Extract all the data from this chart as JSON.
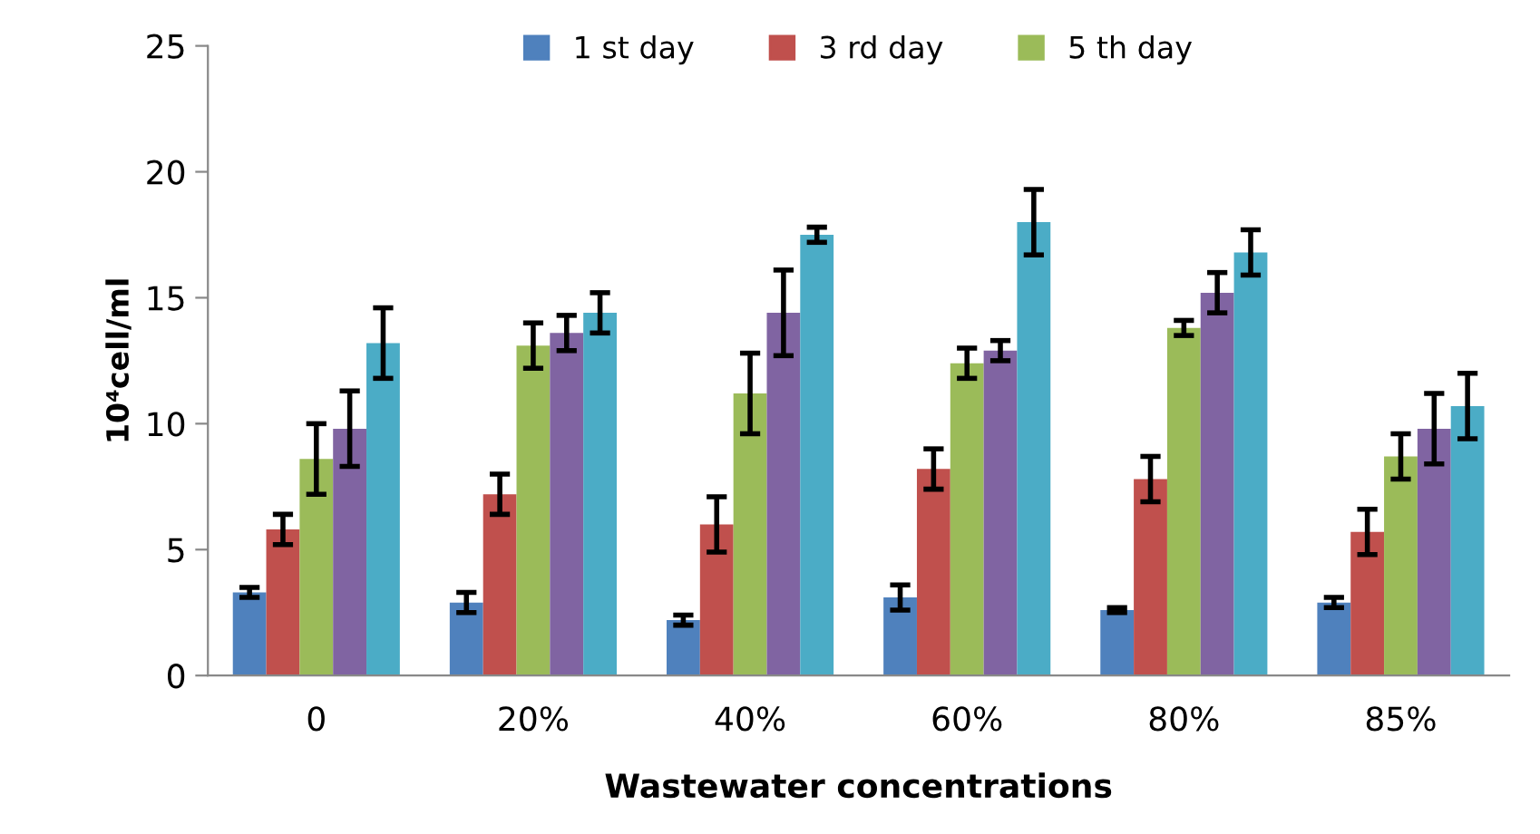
{
  "chart_data": {
    "type": "bar",
    "xlabel": "Wastewater concentrations",
    "ylabel": "10⁴cell/ml",
    "categories": [
      "0",
      "20%",
      "40%",
      "60%",
      "80%",
      "85%"
    ],
    "series": [
      {
        "name": "1 st day",
        "color": "#4f81bd",
        "values": [
          3.3,
          2.9,
          2.2,
          3.1,
          2.6,
          2.9
        ],
        "errors": [
          0.2,
          0.4,
          0.2,
          0.5,
          0.1,
          0.2
        ]
      },
      {
        "name": "3 rd day",
        "color": "#c0504d",
        "values": [
          5.8,
          7.2,
          6.0,
          8.2,
          7.8,
          5.7
        ],
        "errors": [
          0.6,
          0.8,
          1.1,
          0.8,
          0.9,
          0.9
        ]
      },
      {
        "name": "5 th day",
        "color": "#9bbb59",
        "values": [
          8.6,
          13.1,
          11.2,
          12.4,
          13.8,
          8.7
        ],
        "errors": [
          1.4,
          0.9,
          1.6,
          0.6,
          0.3,
          0.9
        ]
      },
      {
        "color": "#8064a2",
        "values": [
          9.8,
          13.6,
          14.4,
          12.9,
          15.2,
          9.8
        ],
        "errors": [
          1.5,
          0.7,
          1.7,
          0.4,
          0.8,
          1.4
        ]
      },
      {
        "color": "#4bacc6",
        "values": [
          13.2,
          14.4,
          17.5,
          18.0,
          16.8,
          10.7
        ],
        "errors": [
          1.4,
          0.8,
          0.3,
          1.3,
          0.9,
          1.3
        ]
      }
    ],
    "ylim": [
      0,
      25
    ],
    "yticks": [
      0,
      5,
      10,
      15,
      20,
      25
    ],
    "grid": false,
    "legend": "top"
  }
}
